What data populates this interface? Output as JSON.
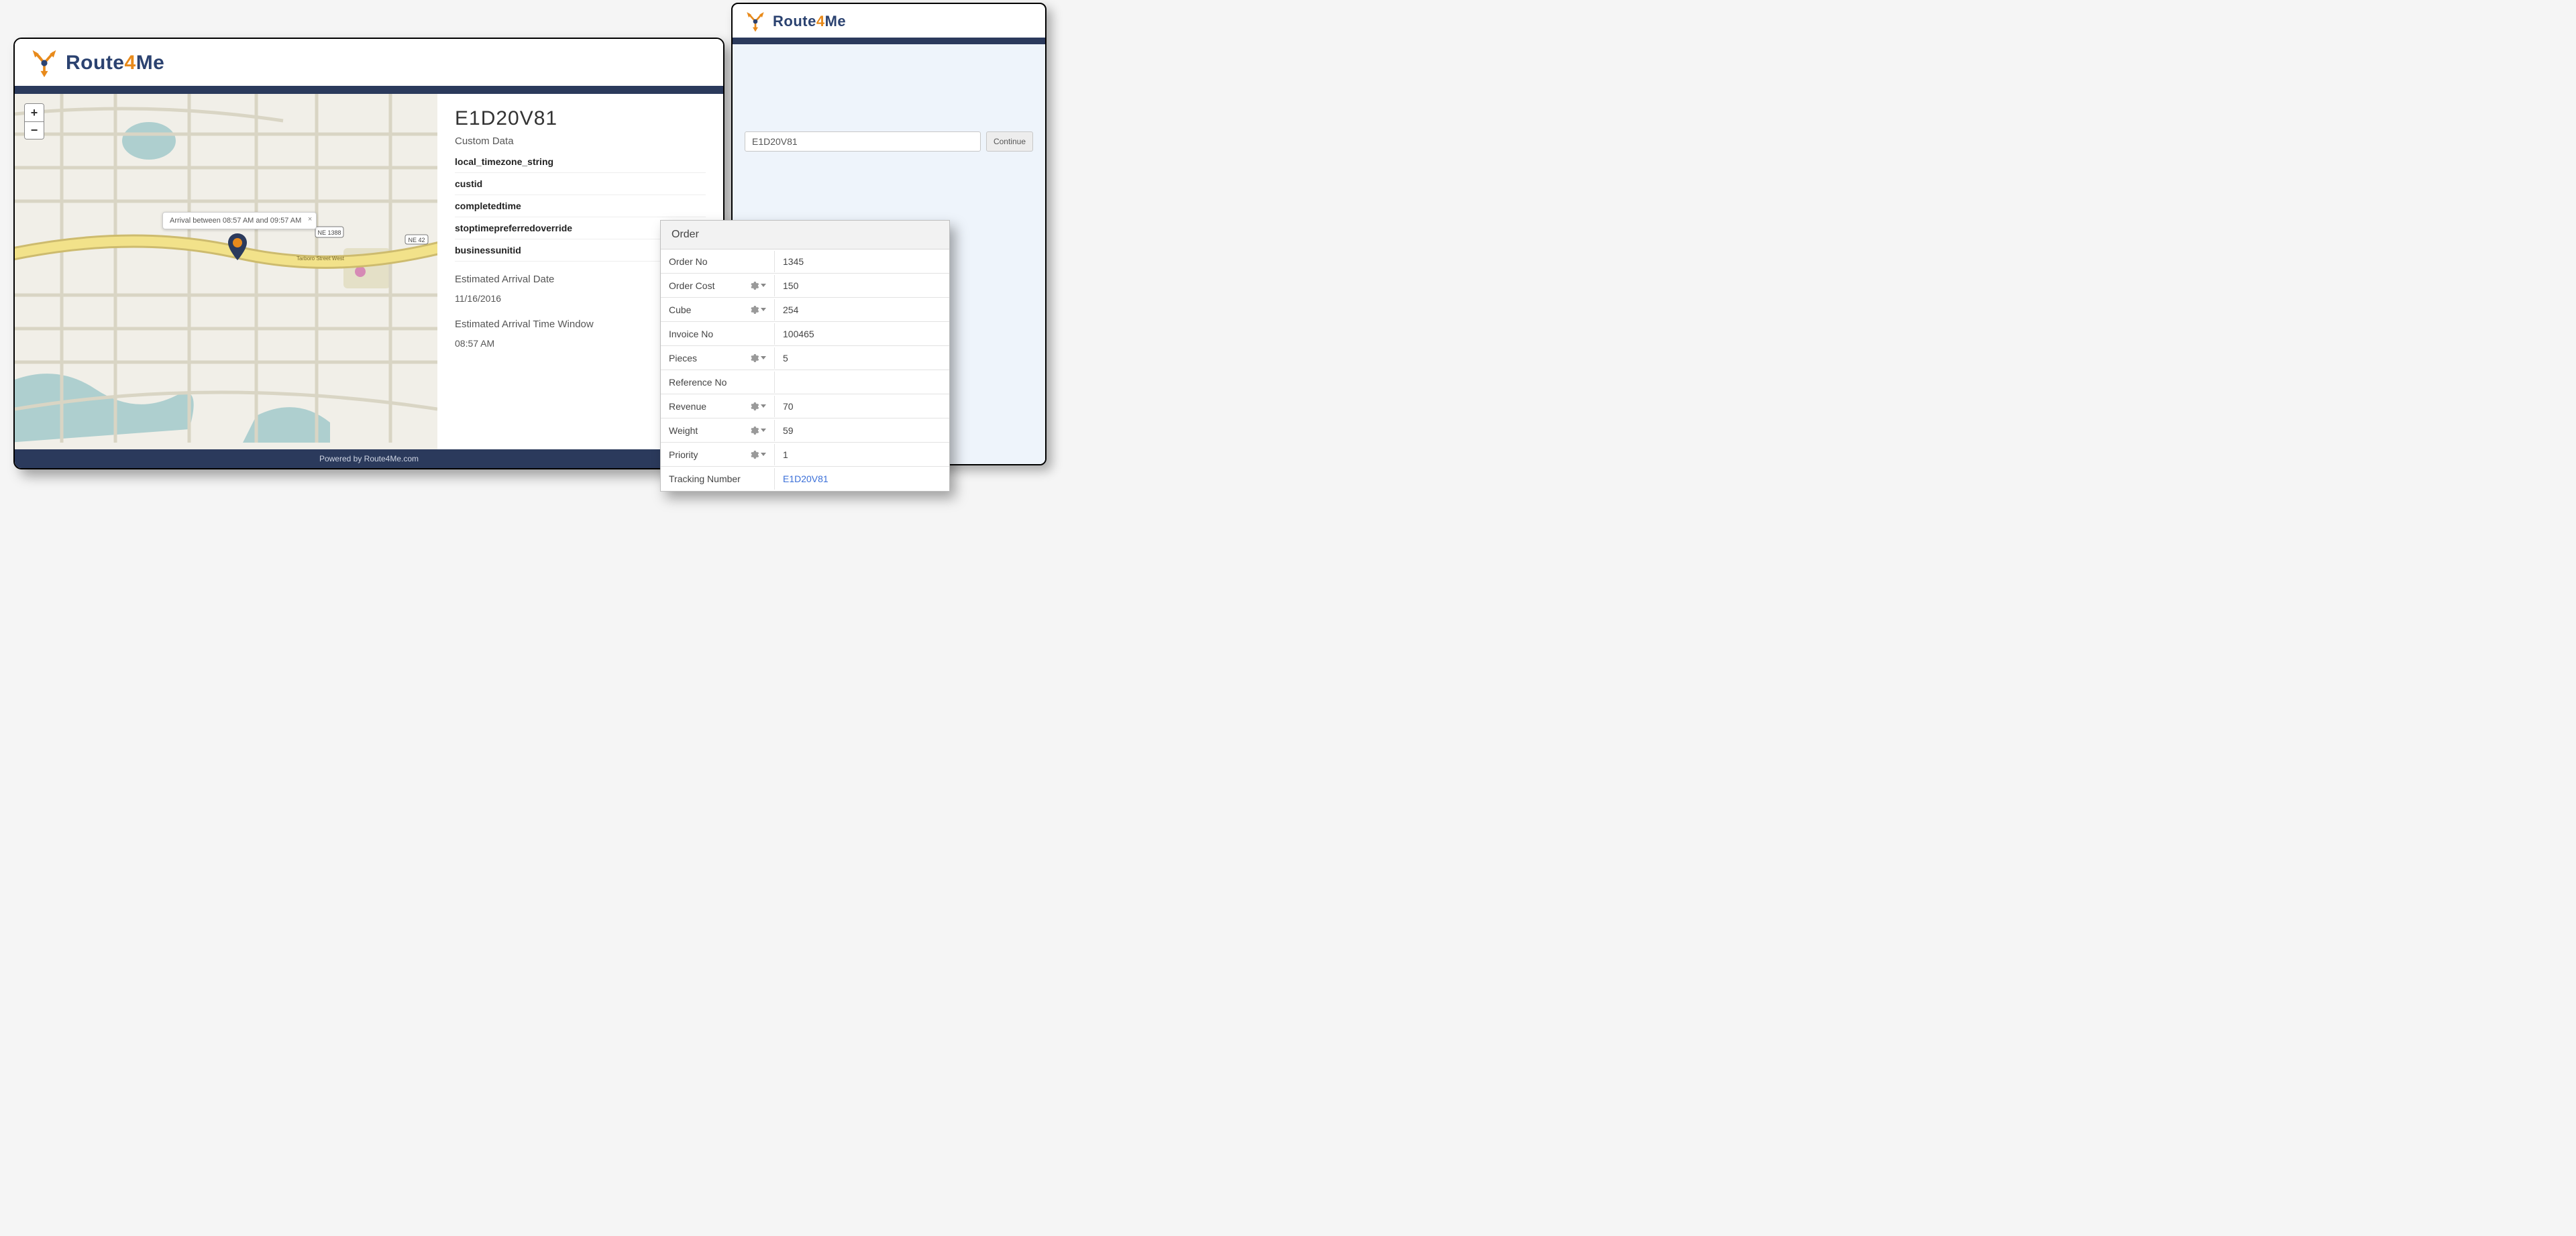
{
  "brand": {
    "name_part1": "Route",
    "name_part2": "4",
    "name_part3": "Me",
    "primary_color": "#2b4270",
    "accent_color": "#e88a1b"
  },
  "main": {
    "order_id": "E1D20V81",
    "custom_data_label": "Custom Data",
    "custom_fields": {
      "0": "local_timezone_string",
      "1": "custid",
      "2": "completedtime",
      "3": "stoptimepreferredoverride",
      "4": "businessunitid"
    },
    "est_date_label": "Estimated Arrival Date",
    "est_date_value": "11/16/2016",
    "est_window_label": "Estimated Arrival Time Window",
    "est_window_value": "08:57 AM",
    "footer": "Powered by Route4Me.com",
    "map": {
      "tooltip_text": "Arrival between 08:57 AM and 09:57 AM",
      "zoom_in": "+",
      "zoom_out": "−",
      "roads": {
        "highway_label": "NE 42",
        "shield_label": "NE 1388",
        "street_label": "Tarboro Street West"
      }
    }
  },
  "secondary": {
    "input_value": "E1D20V81",
    "continue_label": "Continue"
  },
  "order_panel": {
    "title": "Order",
    "rows": {
      "order_no": {
        "label": "Order No",
        "value": "1345",
        "has_gear": false,
        "is_link": false
      },
      "order_cost": {
        "label": "Order Cost",
        "value": "150",
        "has_gear": true,
        "is_link": false
      },
      "cube": {
        "label": "Cube",
        "value": "254",
        "has_gear": true,
        "is_link": false
      },
      "invoice_no": {
        "label": "Invoice No",
        "value": "100465",
        "has_gear": false,
        "is_link": false
      },
      "pieces": {
        "label": "Pieces",
        "value": "5",
        "has_gear": true,
        "is_link": false
      },
      "reference_no": {
        "label": "Reference No",
        "value": "",
        "has_gear": false,
        "is_link": false
      },
      "revenue": {
        "label": "Revenue",
        "value": "70",
        "has_gear": true,
        "is_link": false
      },
      "weight": {
        "label": "Weight",
        "value": "59",
        "has_gear": true,
        "is_link": false
      },
      "priority": {
        "label": "Priority",
        "value": "1",
        "has_gear": true,
        "is_link": false
      },
      "tracking": {
        "label": "Tracking Number",
        "value": "E1D20V81",
        "has_gear": false,
        "is_link": true
      }
    }
  }
}
